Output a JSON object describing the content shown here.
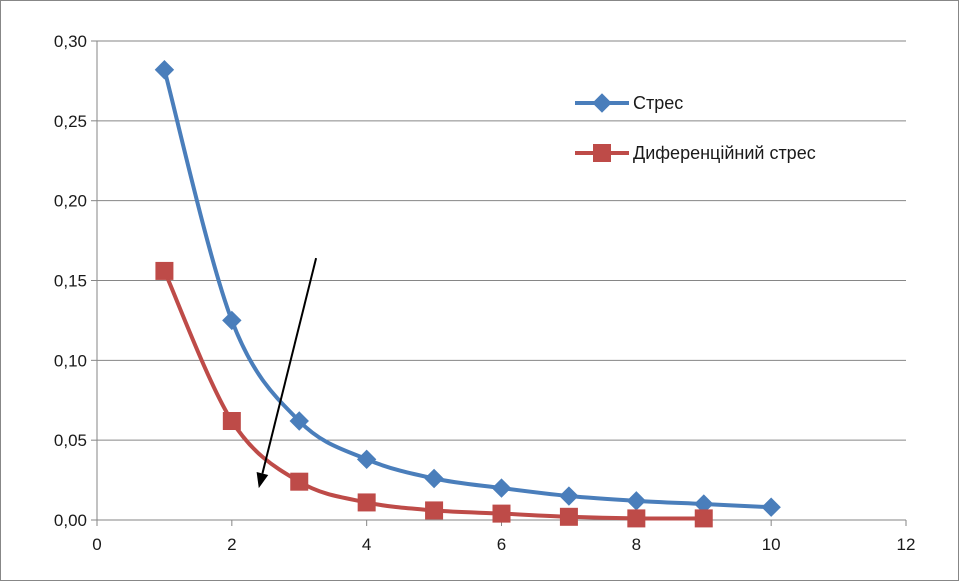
{
  "chart_data": {
    "type": "line",
    "title": "",
    "xlabel": "",
    "ylabel": "",
    "xlim": [
      0,
      12
    ],
    "ylim": [
      0,
      0.3
    ],
    "x_ticks": [
      0,
      2,
      4,
      6,
      8,
      10,
      12
    ],
    "y_ticks": [
      0,
      0.05,
      0.1,
      0.15,
      0.2,
      0.25,
      0.3
    ],
    "x_tick_labels": [
      "0",
      "2",
      "4",
      "6",
      "8",
      "10",
      "12"
    ],
    "y_tick_labels": [
      "0,00",
      "0,05",
      "0,10",
      "0,15",
      "0,20",
      "0,25",
      "0,30"
    ],
    "grid": "horizontal",
    "smooth": true,
    "legend_position": "top-right",
    "series": [
      {
        "name": "Стрес",
        "color": "#4a7ebb",
        "marker": "diamond",
        "x": [
          1,
          2,
          3,
          4,
          5,
          6,
          7,
          8,
          9,
          10
        ],
        "values": [
          0.282,
          0.125,
          0.062,
          0.038,
          0.026,
          0.02,
          0.015,
          0.012,
          0.01,
          0.008
        ]
      },
      {
        "name": "Диференційний стрес",
        "color": "#be4b48",
        "marker": "square",
        "x": [
          1,
          2,
          3,
          4,
          5,
          6,
          7,
          8,
          9
        ],
        "values": [
          0.156,
          0.062,
          0.024,
          0.011,
          0.006,
          0.004,
          0.002,
          0.001,
          0.001
        ]
      }
    ],
    "annotations": [
      {
        "type": "arrow",
        "color": "#000000",
        "from": [
          3.25,
          0.164
        ],
        "to": [
          2.4,
          0.02
        ]
      }
    ]
  }
}
